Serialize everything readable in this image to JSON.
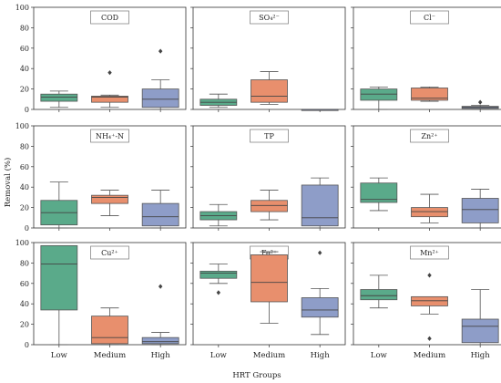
{
  "chart_data": {
    "type": "boxplot",
    "ylabel": "Removal (%)",
    "xlabel": "HRT Groups",
    "categories": [
      "Low",
      "Medium",
      "High"
    ],
    "ylim": [
      0,
      100
    ],
    "yticks": [
      0,
      20,
      40,
      60,
      80,
      100
    ],
    "grid": false,
    "colors": {
      "Low": "#5aaa8a",
      "Medium": "#e88f6d",
      "High": "#8e9dc8"
    },
    "panels": [
      {
        "title": "COD",
        "boxes": [
          {
            "group": "Low",
            "whislo": 2,
            "q1": 8,
            "med": 12,
            "q3": 15,
            "whishi": 18,
            "fliers": []
          },
          {
            "group": "Medium",
            "whislo": 2,
            "q1": 7,
            "med": 12,
            "q3": 13,
            "whishi": 14,
            "fliers": [
              36
            ]
          },
          {
            "group": "High",
            "whislo": 0,
            "q1": 2,
            "med": 10,
            "q3": 20,
            "whishi": 29,
            "fliers": [
              57
            ]
          }
        ]
      },
      {
        "title": "SO₄²⁻",
        "boxes": [
          {
            "group": "Low",
            "whislo": 2,
            "q1": 4,
            "med": 7,
            "q3": 10,
            "whishi": 15,
            "fliers": []
          },
          {
            "group": "Medium",
            "whislo": 5,
            "q1": 7,
            "med": 13,
            "q3": 29,
            "whishi": 37,
            "fliers": []
          },
          {
            "group": "High",
            "whislo": 0,
            "q1": 0,
            "med": 0,
            "q3": 0,
            "whishi": 0,
            "fliers": []
          }
        ]
      },
      {
        "title": "Cl⁻",
        "boxes": [
          {
            "group": "Low",
            "whislo": 0,
            "q1": 9,
            "med": 15,
            "q3": 20,
            "whishi": 22,
            "fliers": []
          },
          {
            "group": "Medium",
            "whislo": 8,
            "q1": 9,
            "med": 11,
            "q3": 21,
            "whishi": 22,
            "fliers": []
          },
          {
            "group": "High",
            "whislo": 0,
            "q1": 1,
            "med": 2,
            "q3": 3,
            "whishi": 4,
            "fliers": [
              7
            ]
          }
        ]
      },
      {
        "title": "NH₄⁺-N",
        "boxes": [
          {
            "group": "Low",
            "whislo": 0,
            "q1": 3,
            "med": 15,
            "q3": 27,
            "whishi": 45,
            "fliers": []
          },
          {
            "group": "Medium",
            "whislo": 12,
            "q1": 24,
            "med": 30,
            "q3": 32,
            "whishi": 37,
            "fliers": []
          },
          {
            "group": "High",
            "whislo": 0,
            "q1": 2,
            "med": 11,
            "q3": 24,
            "whishi": 37,
            "fliers": []
          }
        ]
      },
      {
        "title": "TP",
        "boxes": [
          {
            "group": "Low",
            "whislo": 2,
            "q1": 8,
            "med": 12,
            "q3": 16,
            "whishi": 23,
            "fliers": []
          },
          {
            "group": "Medium",
            "whislo": 8,
            "q1": 16,
            "med": 22,
            "q3": 27,
            "whishi": 37,
            "fliers": []
          },
          {
            "group": "High",
            "whislo": 0,
            "q1": 2,
            "med": 10,
            "q3": 42,
            "whishi": 49,
            "fliers": []
          }
        ]
      },
      {
        "title": "Zn²⁺",
        "boxes": [
          {
            "group": "Low",
            "whislo": 17,
            "q1": 25,
            "med": 28,
            "q3": 44,
            "whishi": 49,
            "fliers": []
          },
          {
            "group": "Medium",
            "whislo": 5,
            "q1": 11,
            "med": 16,
            "q3": 20,
            "whishi": 33,
            "fliers": []
          },
          {
            "group": "High",
            "whislo": 0,
            "q1": 5,
            "med": 18,
            "q3": 29,
            "whishi": 38,
            "fliers": []
          }
        ]
      },
      {
        "title": "Cu²⁺",
        "boxes": [
          {
            "group": "Low",
            "whislo": 0,
            "q1": 34,
            "med": 79,
            "q3": 97,
            "whishi": 97,
            "fliers": []
          },
          {
            "group": "Medium",
            "whislo": 0,
            "q1": 1,
            "med": 7,
            "q3": 28,
            "whishi": 36,
            "fliers": []
          },
          {
            "group": "High",
            "whislo": 0,
            "q1": 1,
            "med": 3,
            "q3": 7,
            "whishi": 12,
            "fliers": [
              57
            ]
          }
        ]
      },
      {
        "title": "Fe²⁺",
        "boxes": [
          {
            "group": "Low",
            "whislo": 60,
            "q1": 65,
            "med": 70,
            "q3": 72,
            "whishi": 79,
            "fliers": [
              51
            ]
          },
          {
            "group": "Medium",
            "whislo": 21,
            "q1": 42,
            "med": 61,
            "q3": 88,
            "whishi": 91,
            "fliers": []
          },
          {
            "group": "High",
            "whislo": 10,
            "q1": 27,
            "med": 34,
            "q3": 46,
            "whishi": 55,
            "fliers": [
              90
            ]
          }
        ]
      },
      {
        "title": "Mn²⁺",
        "boxes": [
          {
            "group": "Low",
            "whislo": 36,
            "q1": 44,
            "med": 48,
            "q3": 54,
            "whishi": 68,
            "fliers": []
          },
          {
            "group": "Medium",
            "whislo": 30,
            "q1": 38,
            "med": 43,
            "q3": 47,
            "whishi": 47,
            "fliers": [
              68,
              6
            ]
          },
          {
            "group": "High",
            "whislo": 0,
            "q1": 2,
            "med": 18,
            "q3": 25,
            "whishi": 54,
            "fliers": []
          }
        ]
      }
    ]
  }
}
